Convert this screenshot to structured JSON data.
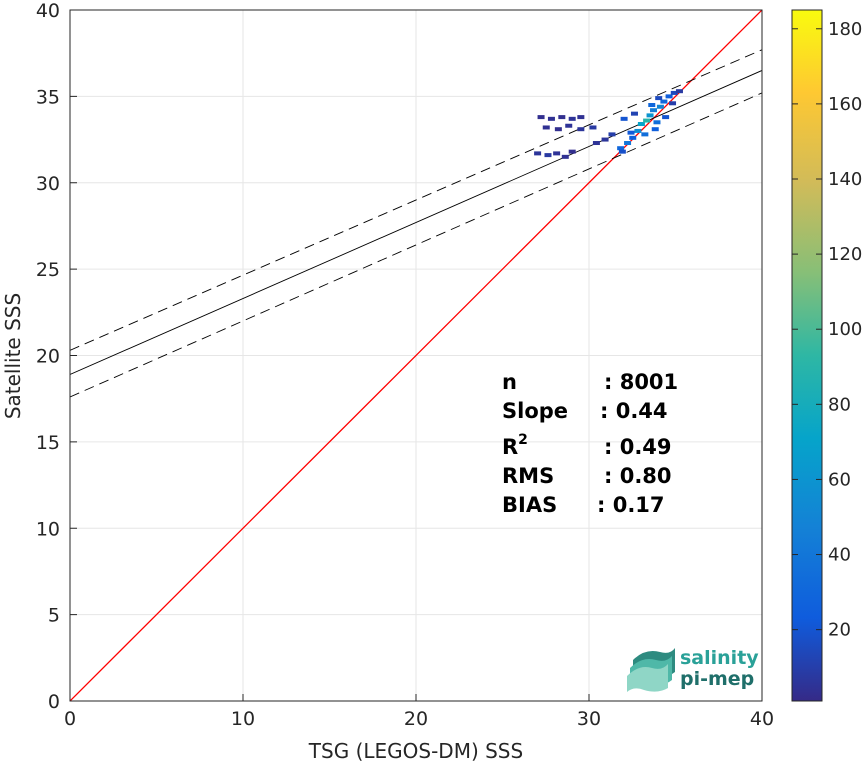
{
  "chart_data": {
    "type": "heatmap",
    "title": "",
    "xlabel": "TSG (LEGOS-DM) SSS",
    "ylabel": "Satellite SSS",
    "xlim": [
      0,
      40
    ],
    "ylim": [
      0,
      40
    ],
    "xticks": [
      0,
      10,
      20,
      30,
      40
    ],
    "yticks": [
      0,
      5,
      10,
      15,
      20,
      25,
      30,
      35,
      40
    ],
    "grid": true,
    "lines": {
      "identity": {
        "from": [
          0,
          0
        ],
        "to": [
          40,
          40
        ],
        "color": "#ff0000"
      },
      "fit": {
        "intercept": 18.9,
        "slope": 0.44,
        "color": "#000000"
      },
      "fit_upper": {
        "intercept": 20.3,
        "slope": 0.435,
        "style": "dashed"
      },
      "fit_lower": {
        "intercept": 17.6,
        "slope": 0.44,
        "style": "dashed"
      }
    },
    "density_points": [
      [
        27.2,
        33.8,
        3
      ],
      [
        27.8,
        33.7,
        4
      ],
      [
        28.4,
        33.8,
        3
      ],
      [
        29.0,
        33.7,
        5
      ],
      [
        29.5,
        33.8,
        4
      ],
      [
        27.5,
        33.2,
        4
      ],
      [
        28.2,
        33.1,
        3
      ],
      [
        28.8,
        33.3,
        5
      ],
      [
        29.5,
        33.1,
        6
      ],
      [
        30.2,
        33.2,
        8
      ],
      [
        27.0,
        31.7,
        6
      ],
      [
        27.6,
        31.6,
        8
      ],
      [
        28.1,
        31.7,
        5
      ],
      [
        28.6,
        31.5,
        4
      ],
      [
        29.0,
        31.8,
        3
      ],
      [
        30.4,
        32.3,
        5
      ],
      [
        30.9,
        32.5,
        6
      ],
      [
        31.3,
        32.8,
        10
      ],
      [
        31.8,
        32.0,
        30
      ],
      [
        32.2,
        32.3,
        40
      ],
      [
        32.5,
        32.6,
        25
      ],
      [
        32.8,
        33.0,
        55
      ],
      [
        33.0,
        33.4,
        70
      ],
      [
        33.3,
        33.6,
        90
      ],
      [
        33.5,
        33.9,
        60
      ],
      [
        33.7,
        34.2,
        45
      ],
      [
        33.9,
        33.5,
        35
      ],
      [
        34.1,
        34.4,
        50
      ],
      [
        34.3,
        34.7,
        30
      ],
      [
        34.6,
        35.0,
        25
      ],
      [
        34.9,
        35.2,
        15
      ],
      [
        35.2,
        35.3,
        8
      ],
      [
        32.0,
        33.7,
        20
      ],
      [
        32.6,
        34.0,
        12
      ],
      [
        33.2,
        32.8,
        35
      ],
      [
        33.8,
        33.1,
        25
      ],
      [
        34.4,
        33.8,
        20
      ],
      [
        31.9,
        31.8,
        18
      ],
      [
        32.4,
        32.9,
        22
      ],
      [
        33.6,
        34.5,
        30
      ],
      [
        34.0,
        34.9,
        15
      ],
      [
        34.8,
        34.6,
        10
      ]
    ],
    "colorbar": {
      "range": [
        1,
        185
      ],
      "ticks": [
        20,
        40,
        60,
        80,
        100,
        120,
        140,
        160,
        180
      ],
      "colormap": "parula"
    },
    "annotations": [
      {
        "label": "n",
        "value": ": 8001"
      },
      {
        "label": "Slope",
        "value": ": 0.44"
      },
      {
        "label": "R",
        "sup": "2",
        "value": ": 0.49"
      },
      {
        "label": "RMS",
        "value": ": 0.80"
      },
      {
        "label": "BIAS",
        "value": ": 0.17"
      }
    ]
  },
  "logo": {
    "line1": "salinity",
    "line2": "pi-mep",
    "color1": "#2aa198",
    "color2": "#1f6f6a"
  }
}
